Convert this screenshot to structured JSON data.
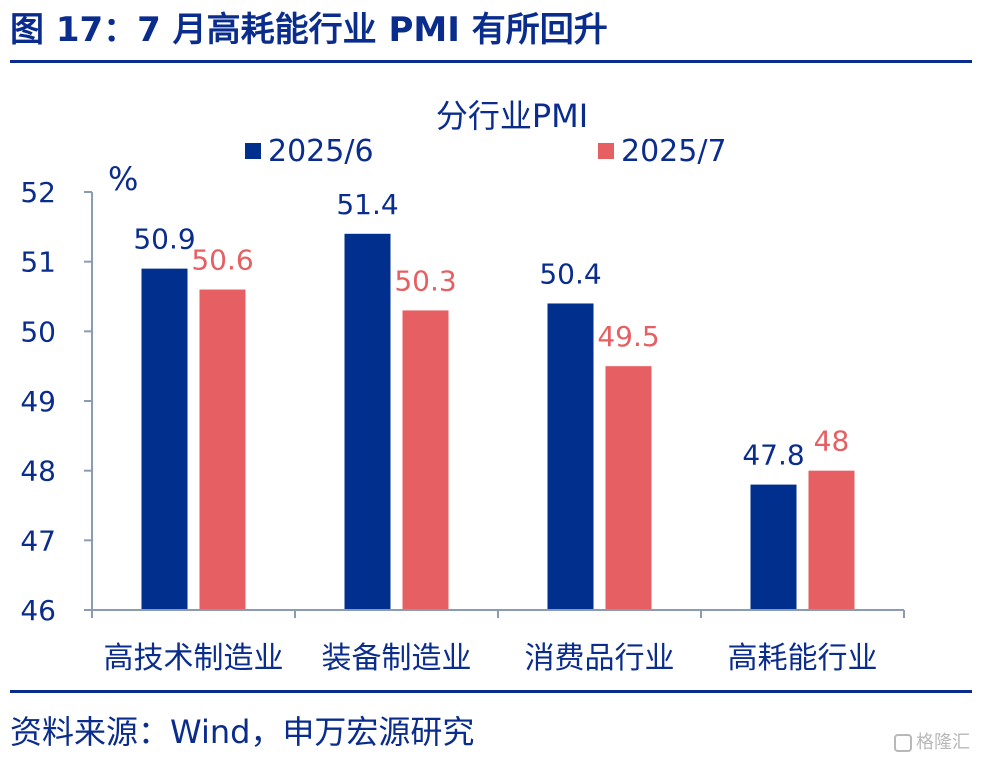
{
  "header": {
    "figure_title": "图 17：7 月高耗能行业 PMI 有所回升"
  },
  "footer": {
    "source": "资料来源：Wind，申万宏源研究",
    "watermark": "格隆汇"
  },
  "colors": {
    "title": "#0a2c8c",
    "series_2025_6": "#002f8e",
    "series_2025_7": "#e65f62",
    "axis": "#8c9bb4"
  },
  "chart_data": {
    "type": "bar",
    "title": "分行业PMI",
    "unit_label": "%",
    "categories": [
      "高技术制造业",
      "装备制造业",
      "消费品行业",
      "高耗能行业"
    ],
    "series": [
      {
        "name": "2025/6",
        "values": [
          50.9,
          51.4,
          50.4,
          47.8
        ]
      },
      {
        "name": "2025/7",
        "values": [
          50.6,
          50.3,
          49.5,
          48
        ]
      }
    ],
    "ylim": [
      46,
      52
    ],
    "yticks": [
      46,
      47,
      48,
      49,
      50,
      51,
      52
    ],
    "grid": false,
    "legend_position": "top"
  }
}
